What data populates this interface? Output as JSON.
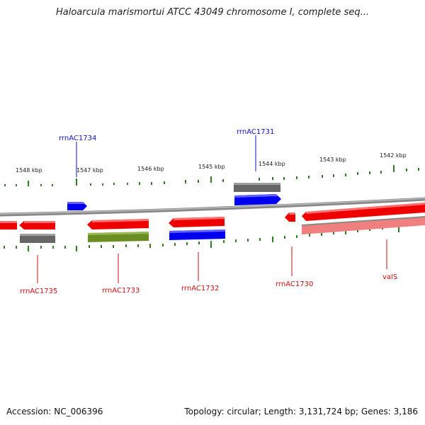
{
  "title": "Haloarcula marismortui ATCC 43049 chromosome I, complete seq...",
  "footer": {
    "accession": "Accession: NC_006396",
    "summary": "Topology: circular; Length: 3,131,724 bp; Genes: 3,186"
  },
  "scale_labels": [
    "1548 kbp",
    "1547 kbp",
    "1546 kbp",
    "1545 kbp",
    "1544 kbp",
    "1543 kbp",
    "1542 kbp"
  ],
  "gene_labels": {
    "top": [
      "rrnAC1734",
      "rrnAC1731"
    ],
    "bottom": [
      "rrnAC1735",
      "rrnAC1733",
      "rrnAC1732",
      "rrnAC1730",
      "valS"
    ]
  },
  "colors": {
    "forward_cds": "#0000ee",
    "reverse_cds": "#ee0000",
    "gray_feature": "#666666",
    "olive_feature": "#6b8e23",
    "pink_feature": "#f08080",
    "backbone": "#888888",
    "ticks": "#2e7d1e",
    "label_blue": "#1010c0",
    "label_red": "#cc1010"
  }
}
